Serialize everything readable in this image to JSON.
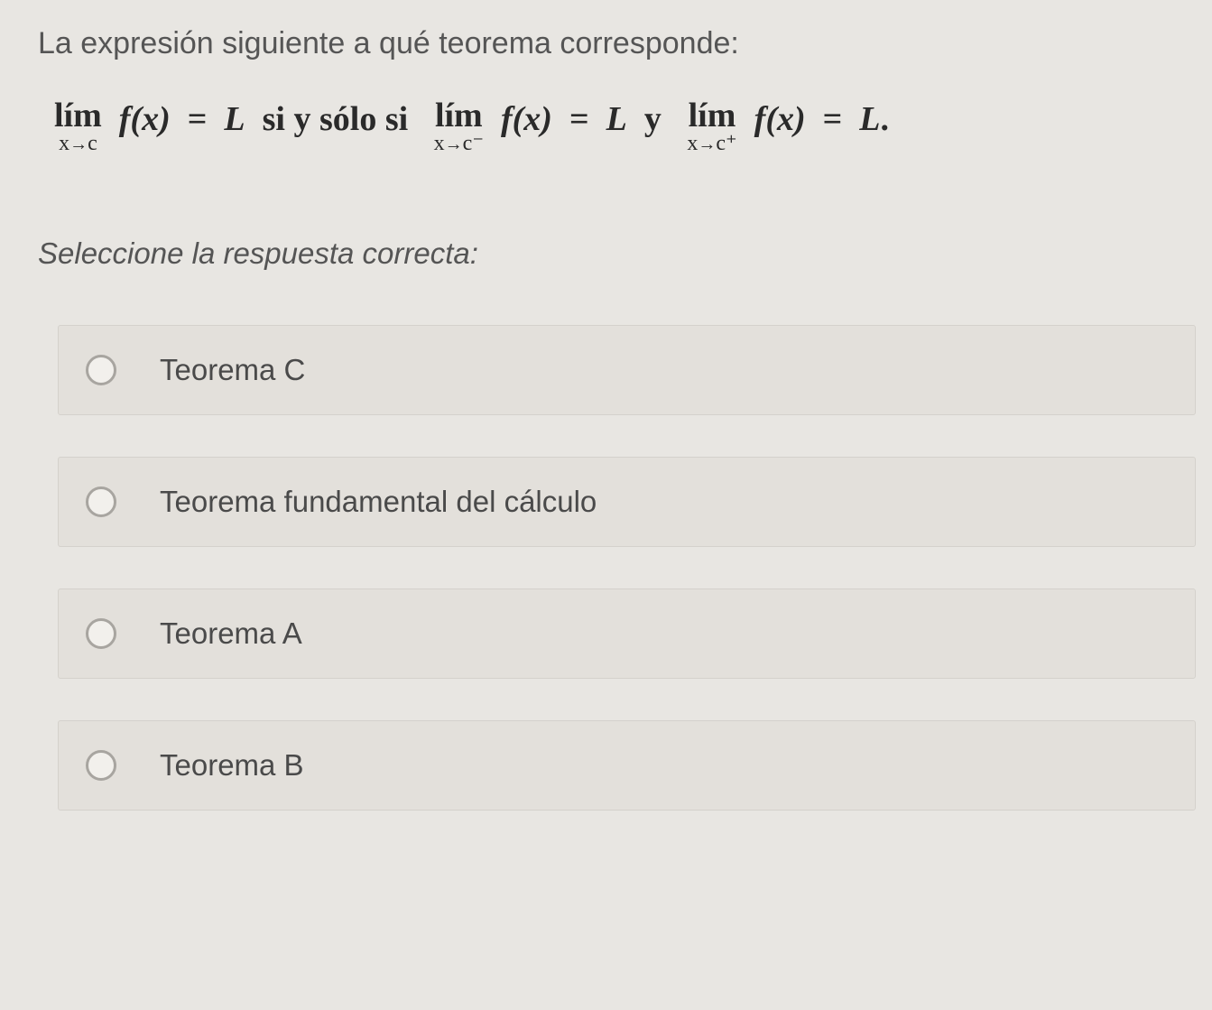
{
  "question": {
    "prompt": "La expresión siguiente a qué teorema corresponde:",
    "math": {
      "lim_label": "lím",
      "fx": "f(x)",
      "equals": "=",
      "L": "L",
      "iff": "si y sólo si",
      "and": "y",
      "arrow": "→",
      "x": "x",
      "c": "c",
      "c_minus": "c⁻",
      "c_plus": "c⁺",
      "period": "."
    },
    "instruction": "Seleccione la respuesta correcta:"
  },
  "options": [
    {
      "label": "Teorema C"
    },
    {
      "label": "Teorema fundamental del cálculo"
    },
    {
      "label": "Teorema A"
    },
    {
      "label": "Teorema B"
    }
  ],
  "colors": {
    "background": "#e8e6e2",
    "option_bg": "#e3e0db",
    "text": "#4a4a4a",
    "radio_border": "#a8a5a0"
  },
  "typography": {
    "question_fontsize": 34,
    "math_fontsize": 38,
    "option_fontsize": 33
  }
}
